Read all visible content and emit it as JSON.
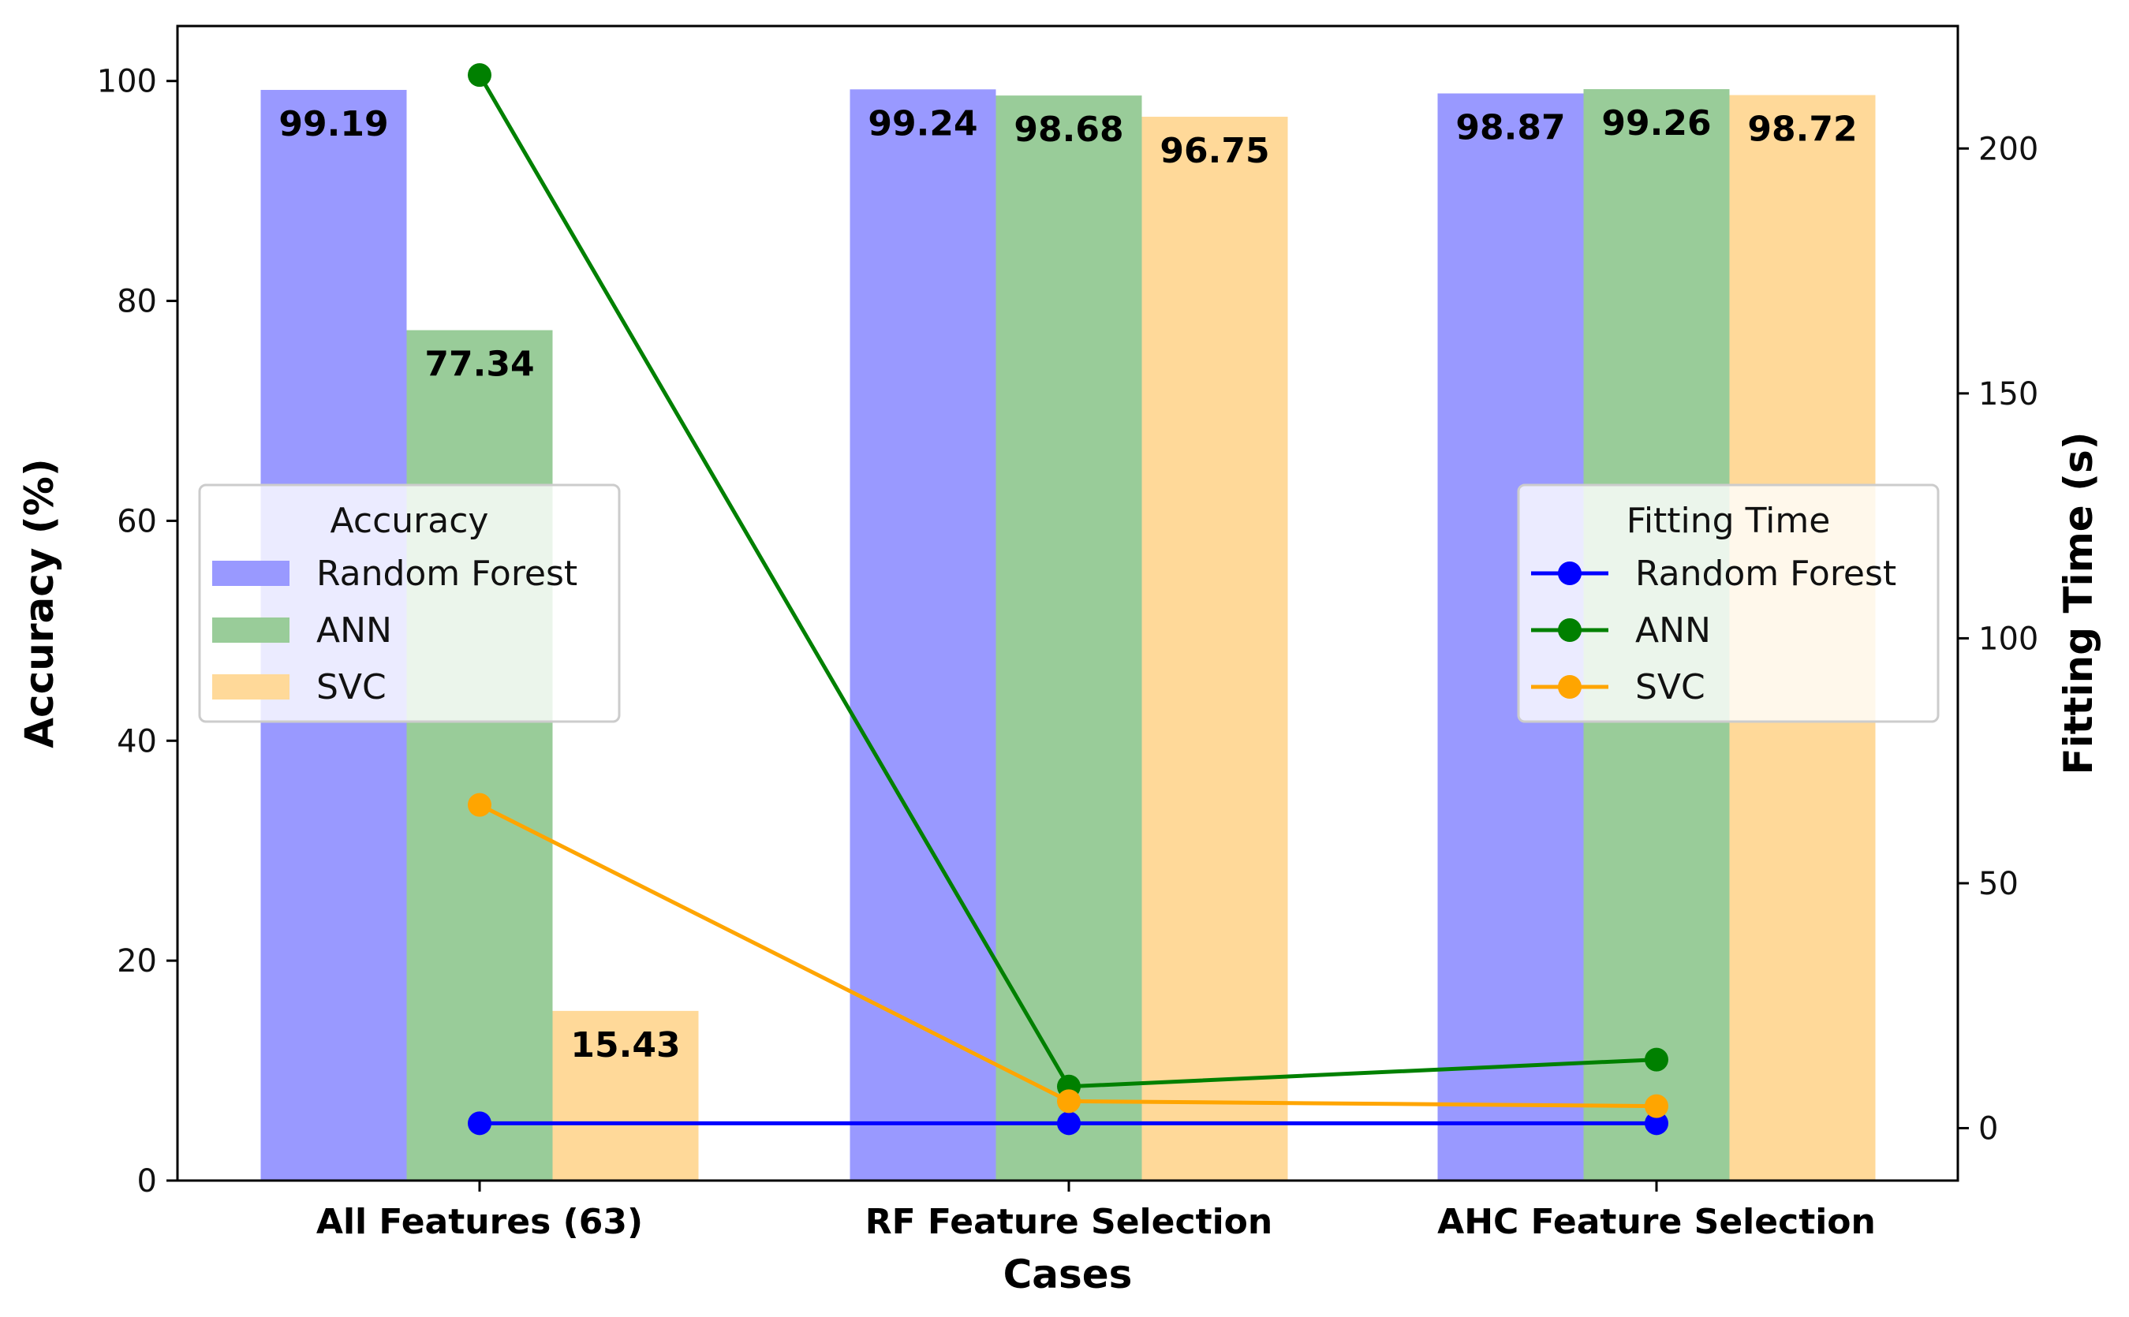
{
  "chart_data": {
    "type": "bar",
    "xlabel": "Cases",
    "categories": [
      "All Features (63)",
      "RF Feature Selection",
      "AHC Feature Selection"
    ],
    "accuracy": {
      "axis_label": "Accuracy (%)",
      "ylim": [
        0,
        105
      ],
      "ticks": [
        0,
        20,
        40,
        60,
        80,
        100
      ],
      "legend_title": "Accuracy",
      "legend_position": "center-left",
      "series": [
        {
          "name": "Random Forest",
          "color": "#9999ff",
          "values": [
            99.19,
            99.24,
            98.87
          ],
          "labels": [
            "99.19",
            "99.24",
            "98.87"
          ]
        },
        {
          "name": "ANN",
          "color": "#99cc99",
          "values": [
            77.34,
            98.68,
            99.26
          ],
          "labels": [
            "77.34",
            "98.68",
            "99.26"
          ]
        },
        {
          "name": "SVC",
          "color": "#ffd999",
          "values": [
            15.43,
            96.75,
            98.72
          ],
          "labels": [
            "15.43",
            "96.75",
            "98.72"
          ]
        }
      ]
    },
    "fitting_time": {
      "axis_label": "Fitting Time (s)",
      "ylim": [
        -10.7,
        225
      ],
      "ticks": [
        0,
        50,
        100,
        150,
        200
      ],
      "legend_title": "Fitting Time",
      "legend_position": "center-right",
      "series": [
        {
          "name": "Random Forest",
          "color": "#0000ff",
          "values": [
            1,
            1,
            1
          ]
        },
        {
          "name": "ANN",
          "color": "#008000",
          "values": [
            215,
            8.5,
            14
          ]
        },
        {
          "name": "SVC",
          "color": "#ffa500",
          "values": [
            66,
            5.5,
            4.5
          ]
        }
      ]
    },
    "grid": false
  }
}
